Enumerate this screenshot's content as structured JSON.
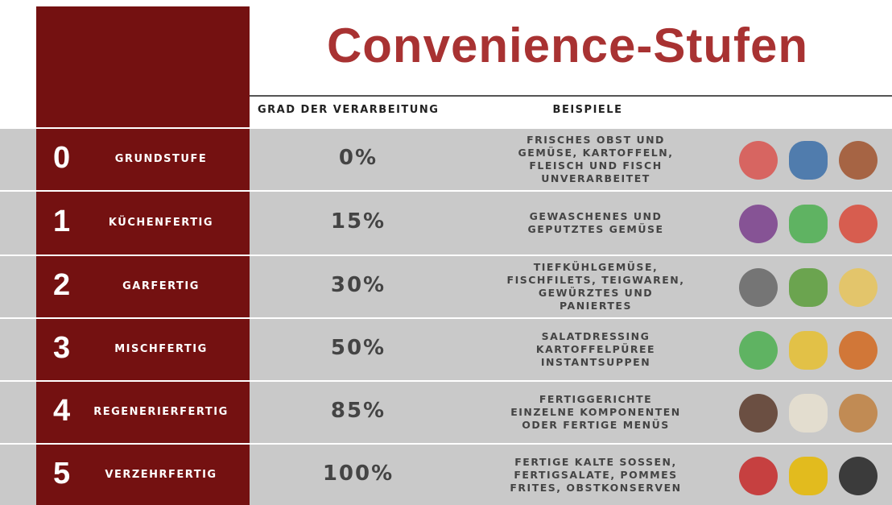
{
  "header": {
    "title": "Convenience-Stufen",
    "columns": [
      "GRAD DER VERARBEITUNG",
      "BEISPIELE"
    ]
  },
  "rows": [
    {
      "level": "0",
      "name": "GRUNDSTUFE",
      "percent": "0%",
      "examples": [
        "FRISCHES OBST UND",
        "GEMÜSE, KARTOFFELN,",
        "FLEISCH UND FISCH",
        "UNVERARBEITET"
      ]
    },
    {
      "level": "1",
      "name": "KÜCHENFERTIG",
      "percent": "15%",
      "examples": [
        "GEWASCHENES UND",
        "GEPUTZTES GEMÜSE"
      ]
    },
    {
      "level": "2",
      "name": "GARFERTIG",
      "percent": "30%",
      "examples": [
        "TIEFKÜHLGEMÜSE,",
        "FISCHFILETS, TEIGWAREN,",
        "GEWÜRZTES UND",
        "PANIERTES"
      ]
    },
    {
      "level": "3",
      "name": "MISCHFERTIG",
      "percent": "50%",
      "examples": [
        "SALATDRESSING",
        "KARTOFFELPÜREE",
        "INSTANTSUPPEN"
      ]
    },
    {
      "level": "4",
      "name": "REGENERIERFERTIG",
      "percent": "85%",
      "examples": [
        "FERTIGGERICHTE",
        "EINZELNE KOMPONENTEN",
        "ODER FERTIGE MENÜS"
      ]
    },
    {
      "level": "5",
      "name": "VERZEHRFERTIG",
      "percent": "100%",
      "examples": [
        "FERTIGE KALTE SOSSEN,",
        "FERTIGSALATE, POMMES",
        "FRITES, OBSTKONSERVEN"
      ]
    }
  ]
}
